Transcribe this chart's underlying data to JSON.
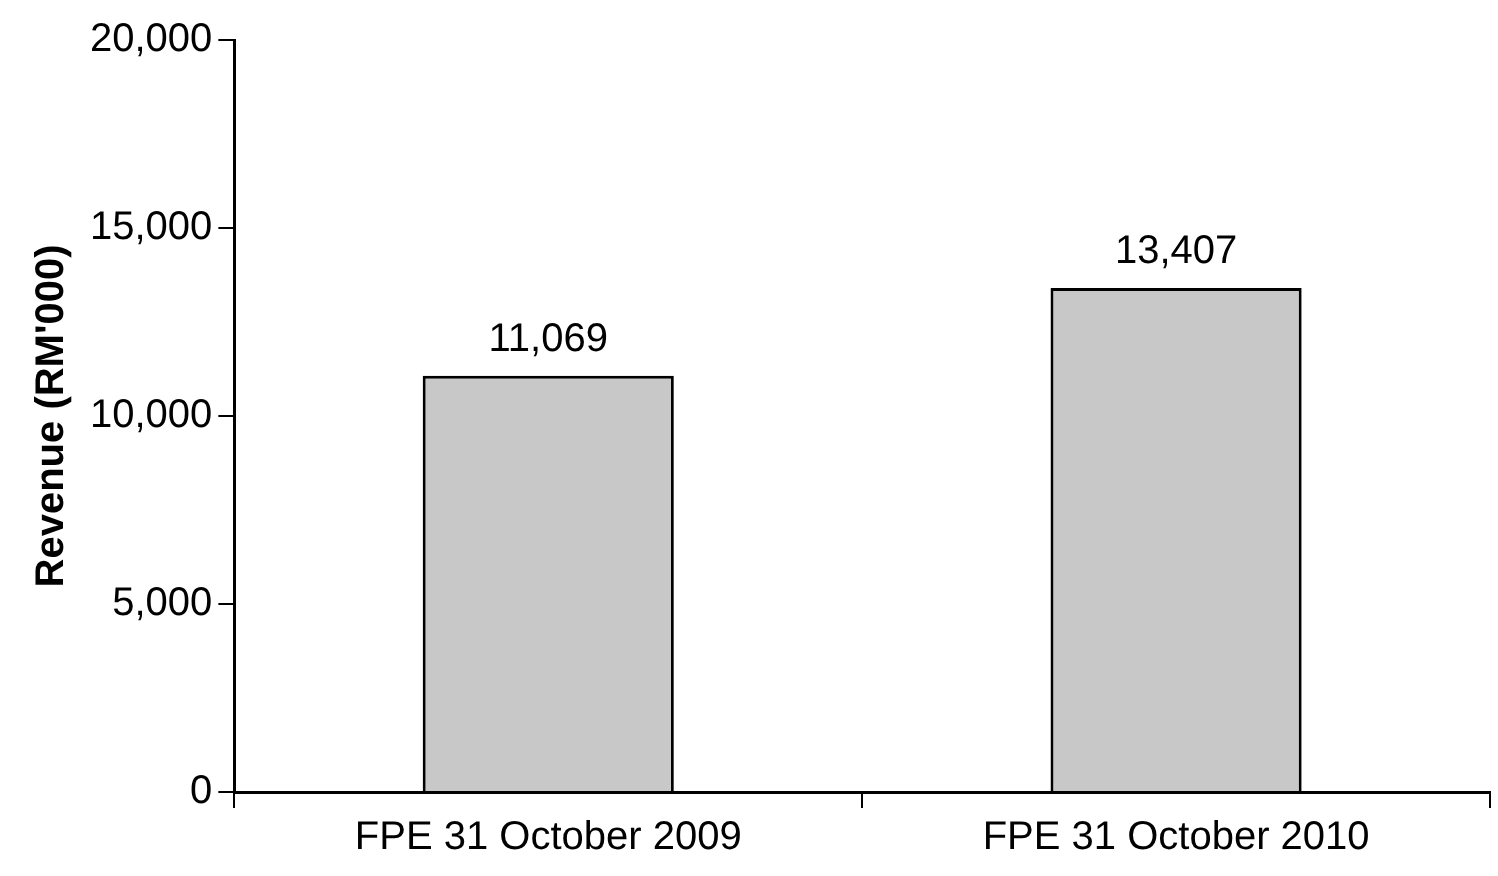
{
  "chart_data": {
    "type": "bar",
    "ylabel": "Revenue (RM'000)",
    "categories": [
      "FPE 31 October 2009",
      "FPE 31 October 2010"
    ],
    "values": [
      11069,
      13407
    ],
    "value_labels": [
      "11,069",
      "13,407"
    ],
    "color": "#c8c8c8",
    "ylim": [
      0,
      20000
    ],
    "yticks": [
      0,
      {
        "value": 5000,
        "label": "5,000"
      },
      {
        "value": 10000,
        "label": "10,000"
      },
      {
        "value": 15000,
        "label": "15,000"
      },
      {
        "value": 20000,
        "label": "20,000"
      }
    ],
    "grid": false,
    "legend": false
  }
}
